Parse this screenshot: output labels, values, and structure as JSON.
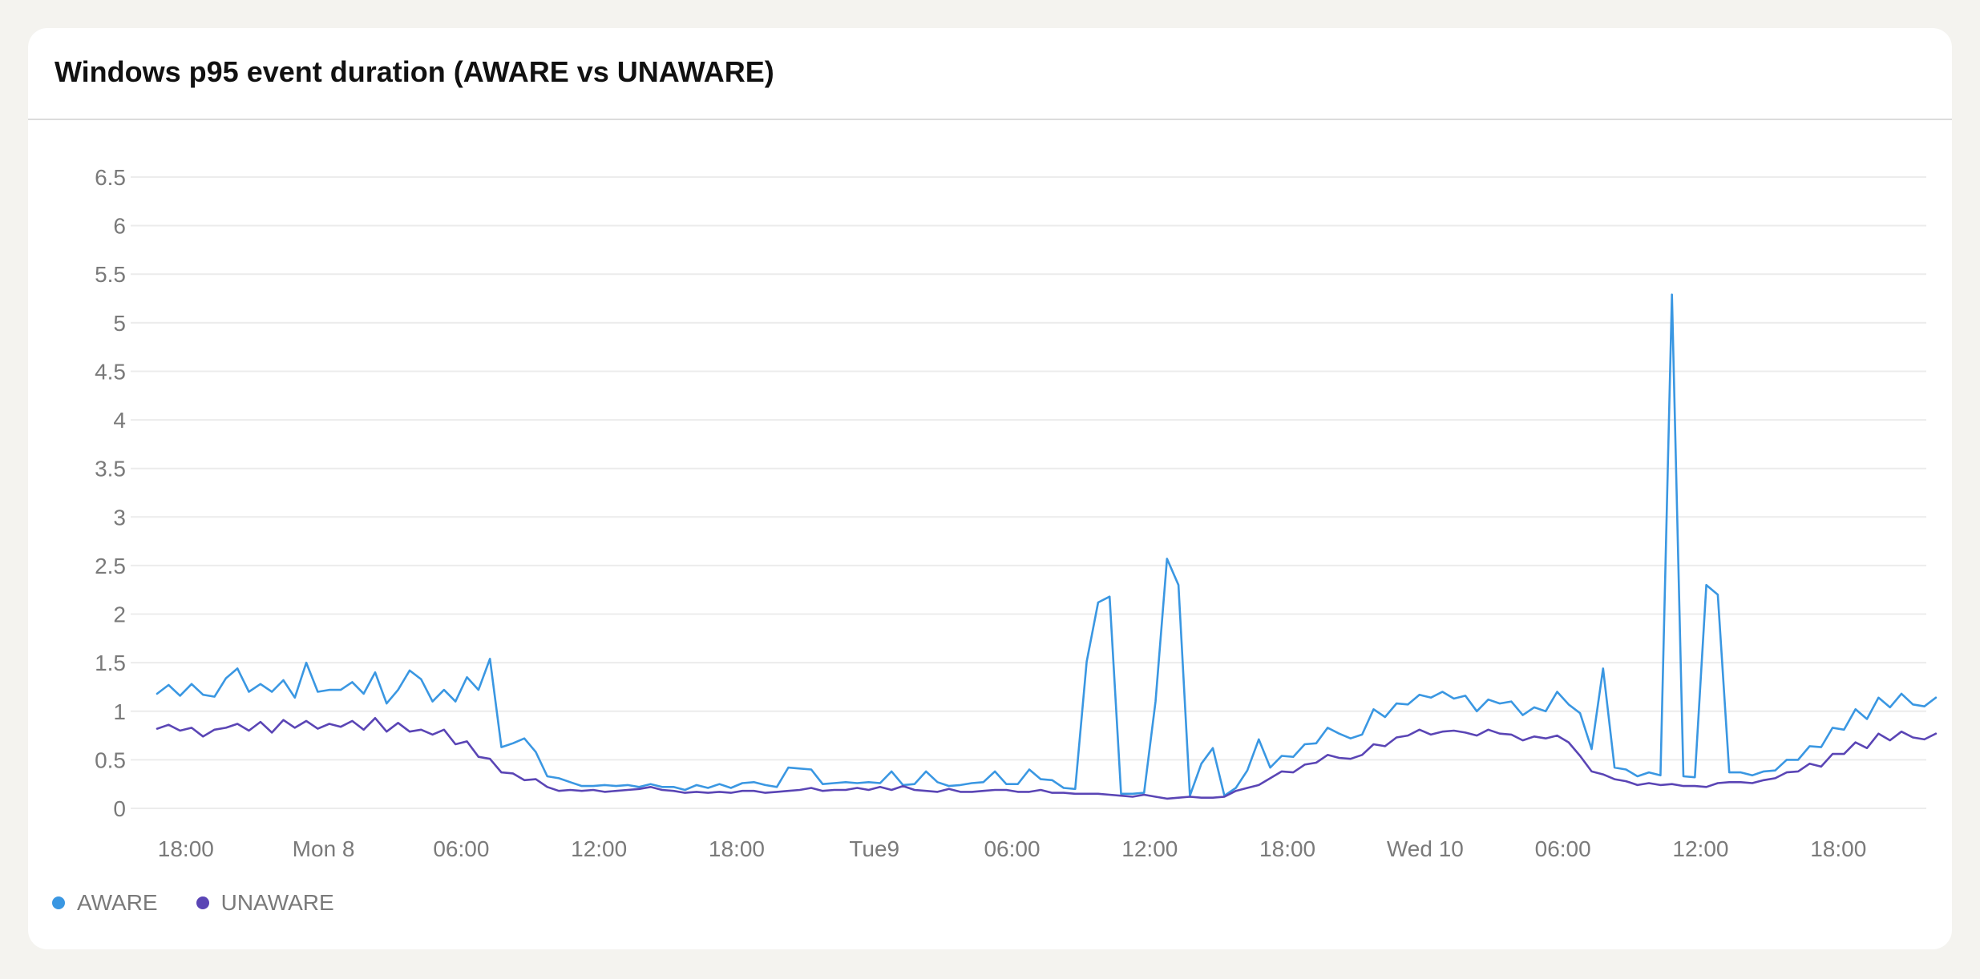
{
  "colors": {
    "aware": "#3a97e2",
    "unaware": "#5a45b5",
    "grid": "#ececec",
    "tick_text": "#7a7a7a"
  },
  "chart_data": {
    "type": "line",
    "title": "Windows p95 event duration (AWARE vs UNAWARE)",
    "xlabel": "",
    "ylabel": "",
    "x_range": [
      "2025-12-07T15:40",
      "2025-12-10T21:50"
    ],
    "xlim": [
      "2025-12-07T15:40",
      "2025-12-10T21:50"
    ],
    "ylim": [
      0,
      6.5
    ],
    "y_ticks": [
      {
        "label": "0",
        "value": 0
      },
      {
        "label": "0.5",
        "value": 0.5
      },
      {
        "label": "1",
        "value": 1
      },
      {
        "label": "1.5",
        "value": 1.5
      },
      {
        "label": "2",
        "value": 2
      },
      {
        "label": "2.5",
        "value": 2.5
      },
      {
        "label": "3",
        "value": 3
      },
      {
        "label": "3.5",
        "value": 3.5
      },
      {
        "label": "4",
        "value": 4
      },
      {
        "label": "4.5",
        "value": 4.5
      },
      {
        "label": "5",
        "value": 5
      },
      {
        "label": "5.5",
        "value": 5.5
      },
      {
        "label": "6",
        "value": 6
      },
      {
        "label": "6.5",
        "value": 6.5
      }
    ],
    "x_ticks": [
      {
        "label": "18:00",
        "value": "2025-12-07T18:00"
      },
      {
        "label": "Mon 8",
        "value": "2025-12-08T00:00"
      },
      {
        "label": "06:00",
        "value": "2025-12-08T06:00"
      },
      {
        "label": "12:00",
        "value": "2025-12-08T12:00"
      },
      {
        "label": "18:00",
        "value": "2025-12-08T18:00"
      },
      {
        "label": "Tue9",
        "value": "2025-12-09T00:00"
      },
      {
        "label": "06:00",
        "value": "2025-12-09T06:00"
      },
      {
        "label": "12:00",
        "value": "2025-12-09T12:00"
      },
      {
        "label": "18:00",
        "value": "2025-12-09T18:00"
      },
      {
        "label": "Wed 10",
        "value": "2025-12-10T00:00"
      },
      {
        "label": "06:00",
        "value": "2025-12-10T06:00"
      },
      {
        "label": "12:00",
        "value": "2025-12-10T12:00"
      },
      {
        "label": "18:00",
        "value": "2025-12-10T18:00"
      }
    ],
    "grid": true,
    "legend_position": "bottom-left",
    "x_start": "2025-12-07T16:45",
    "x_step_minutes": 30,
    "series": [
      {
        "name": "AWARE",
        "color": "#3a97e2",
        "values": [
          1.18,
          1.27,
          1.16,
          1.28,
          1.17,
          1.15,
          1.34,
          1.44,
          1.2,
          1.28,
          1.2,
          1.32,
          1.14,
          1.5,
          1.2,
          1.22,
          1.22,
          1.3,
          1.18,
          1.4,
          1.08,
          1.22,
          1.42,
          1.33,
          1.1,
          1.22,
          1.1,
          1.35,
          1.22,
          1.54,
          0.63,
          0.67,
          0.72,
          0.58,
          0.33,
          0.31,
          0.27,
          0.23,
          0.23,
          0.24,
          0.23,
          0.24,
          0.22,
          0.25,
          0.22,
          0.22,
          0.19,
          0.24,
          0.21,
          0.25,
          0.21,
          0.26,
          0.27,
          0.24,
          0.22,
          0.42,
          0.41,
          0.4,
          0.25,
          0.26,
          0.27,
          0.26,
          0.27,
          0.26,
          0.38,
          0.24,
          0.25,
          0.38,
          0.27,
          0.23,
          0.24,
          0.26,
          0.27,
          0.38,
          0.25,
          0.25,
          0.4,
          0.3,
          0.29,
          0.21,
          0.2,
          1.51,
          2.12,
          2.18,
          0.15,
          0.15,
          0.16,
          1.1,
          2.57,
          2.3,
          0.13,
          0.46,
          0.62,
          0.13,
          0.21,
          0.39,
          0.71,
          0.42,
          0.54,
          0.53,
          0.66,
          0.67,
          0.83,
          0.77,
          0.72,
          0.76,
          1.02,
          0.94,
          1.08,
          1.07,
          1.17,
          1.14,
          1.2,
          1.13,
          1.16,
          1.0,
          1.12,
          1.08,
          1.1,
          0.96,
          1.04,
          1.0,
          1.2,
          1.07,
          0.98,
          0.61,
          1.44,
          0.42,
          0.4,
          0.33,
          0.37,
          0.34,
          5.29,
          0.33,
          0.32,
          2.3,
          2.2,
          0.37,
          0.37,
          0.34,
          0.38,
          0.39,
          0.5,
          0.5,
          0.64,
          0.63,
          0.83,
          0.81,
          1.02,
          0.92,
          1.14,
          1.04,
          1.18,
          1.07,
          1.05,
          1.14
        ]
      },
      {
        "name": "UNAWARE",
        "color": "#5a45b5",
        "values": [
          0.82,
          0.86,
          0.8,
          0.83,
          0.74,
          0.81,
          0.83,
          0.87,
          0.8,
          0.89,
          0.78,
          0.91,
          0.83,
          0.9,
          0.82,
          0.87,
          0.84,
          0.9,
          0.81,
          0.93,
          0.79,
          0.88,
          0.79,
          0.81,
          0.76,
          0.81,
          0.66,
          0.69,
          0.53,
          0.51,
          0.37,
          0.36,
          0.29,
          0.3,
          0.22,
          0.18,
          0.19,
          0.18,
          0.19,
          0.17,
          0.18,
          0.19,
          0.2,
          0.22,
          0.19,
          0.18,
          0.16,
          0.17,
          0.16,
          0.17,
          0.16,
          0.18,
          0.18,
          0.16,
          0.17,
          0.18,
          0.19,
          0.21,
          0.18,
          0.19,
          0.19,
          0.21,
          0.19,
          0.22,
          0.19,
          0.23,
          0.19,
          0.18,
          0.17,
          0.2,
          0.17,
          0.17,
          0.18,
          0.19,
          0.19,
          0.17,
          0.17,
          0.19,
          0.16,
          0.16,
          0.15,
          0.15,
          0.15,
          0.14,
          0.13,
          0.12,
          0.14,
          0.12,
          0.1,
          0.11,
          0.12,
          0.11,
          0.11,
          0.12,
          0.18,
          0.21,
          0.24,
          0.31,
          0.38,
          0.37,
          0.45,
          0.47,
          0.55,
          0.52,
          0.51,
          0.55,
          0.66,
          0.64,
          0.73,
          0.75,
          0.81,
          0.76,
          0.79,
          0.8,
          0.78,
          0.75,
          0.81,
          0.77,
          0.76,
          0.7,
          0.74,
          0.72,
          0.75,
          0.68,
          0.54,
          0.38,
          0.35,
          0.3,
          0.28,
          0.24,
          0.26,
          0.24,
          0.25,
          0.23,
          0.23,
          0.22,
          0.26,
          0.27,
          0.27,
          0.26,
          0.29,
          0.31,
          0.37,
          0.38,
          0.46,
          0.43,
          0.56,
          0.56,
          0.68,
          0.62,
          0.77,
          0.7,
          0.79,
          0.73,
          0.71,
          0.77
        ]
      }
    ]
  }
}
